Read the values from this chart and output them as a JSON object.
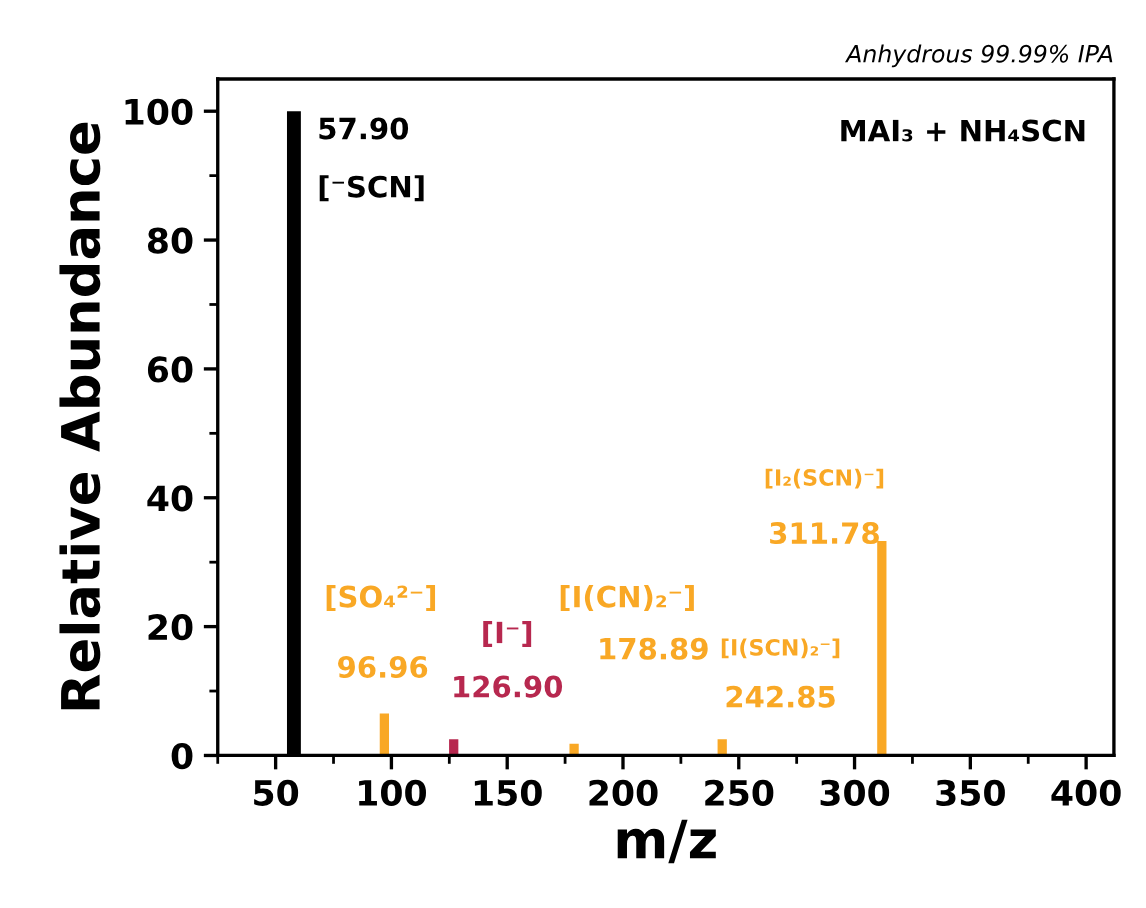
{
  "chart_data": {
    "type": "bar",
    "title": "Anhydrous 99.99% IPA",
    "xlabel": "m/z",
    "ylabel": "Relative Abundance",
    "x": [
      57.9,
      96.96,
      126.9,
      178.89,
      242.85,
      311.78
    ],
    "values": [
      100,
      6.5,
      2.5,
      1.8,
      2.5,
      33.3
    ],
    "colors": [
      "#000000",
      "#f9a825",
      "#b7284f",
      "#f9a825",
      "#f9a825",
      "#f9a825"
    ],
    "xlim": [
      25,
      412
    ],
    "ylim": [
      0,
      105
    ],
    "xticks": [
      50,
      100,
      150,
      200,
      250,
      300,
      350,
      400
    ],
    "yticks": [
      0,
      20,
      40,
      60,
      80,
      100
    ],
    "grid": false,
    "legend": false,
    "annotations": [
      "57.90",
      "[⁻SCN]",
      "[SO₄²⁻]",
      "96.96",
      "[I⁻]",
      "126.90",
      "[I(CN)₂⁻]",
      "178.89",
      "[I(SCN)₂⁻]",
      "242.85",
      "[I₂(SCN)⁻]",
      "311.78",
      "MAI₃ + NH₄SCN"
    ]
  }
}
